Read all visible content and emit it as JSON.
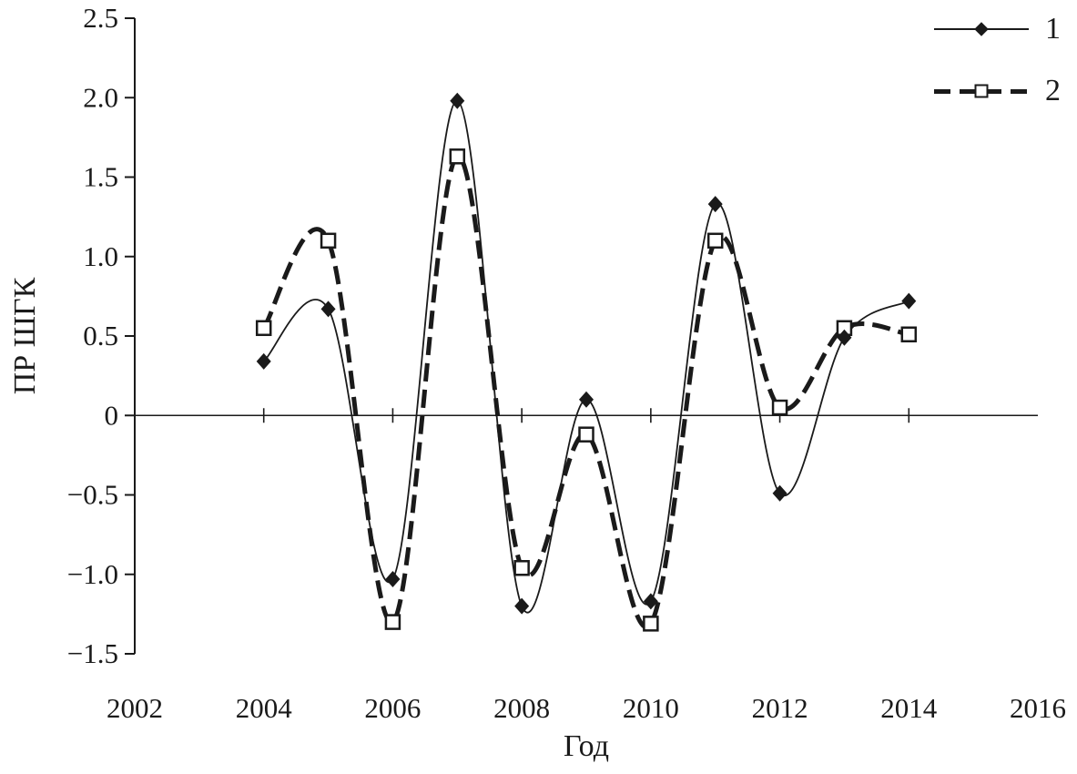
{
  "figure": {
    "background": "#ffffff",
    "ink_color": "#1a1a1a"
  },
  "chart_data": {
    "type": "line",
    "curve": "smooth",
    "title": "",
    "xlabel": "Год",
    "ylabel": "ПР ШГК",
    "xlim": [
      2002,
      2016
    ],
    "ylim": [
      -1.5,
      2.5
    ],
    "x_ticks": [
      2002,
      2004,
      2006,
      2008,
      2010,
      2012,
      2014,
      2016
    ],
    "x_tick_labels": [
      "2002",
      "2004",
      "2006",
      "2008",
      "2010",
      "2012",
      "2014",
      "2016"
    ],
    "y_ticks": [
      2.5,
      2.0,
      1.5,
      1.0,
      0.5,
      0,
      -0.5,
      -1.0,
      -1.5
    ],
    "y_tick_labels": [
      "2.5",
      "2.0",
      "1.5",
      "1.0",
      "0.5",
      "0",
      "−0.5",
      "−1.0",
      "−1.5"
    ],
    "grid": false,
    "legend_position": "top-right",
    "x": [
      2004,
      2005,
      2006,
      2007,
      2008,
      2009,
      2010,
      2011,
      2012,
      2013,
      2014
    ],
    "series": [
      {
        "name": "1",
        "marker": "filled-diamond",
        "line_style": "solid",
        "line_width": 1.8,
        "values": [
          0.34,
          0.67,
          -1.03,
          1.98,
          -1.2,
          0.1,
          -1.17,
          1.33,
          -0.49,
          0.49,
          0.72
        ]
      },
      {
        "name": "2",
        "marker": "open-square",
        "line_style": "dashed",
        "line_width": 5,
        "values": [
          0.55,
          1.1,
          -1.3,
          1.63,
          -0.96,
          -0.12,
          -1.31,
          1.1,
          0.05,
          0.55,
          0.51
        ]
      }
    ]
  }
}
